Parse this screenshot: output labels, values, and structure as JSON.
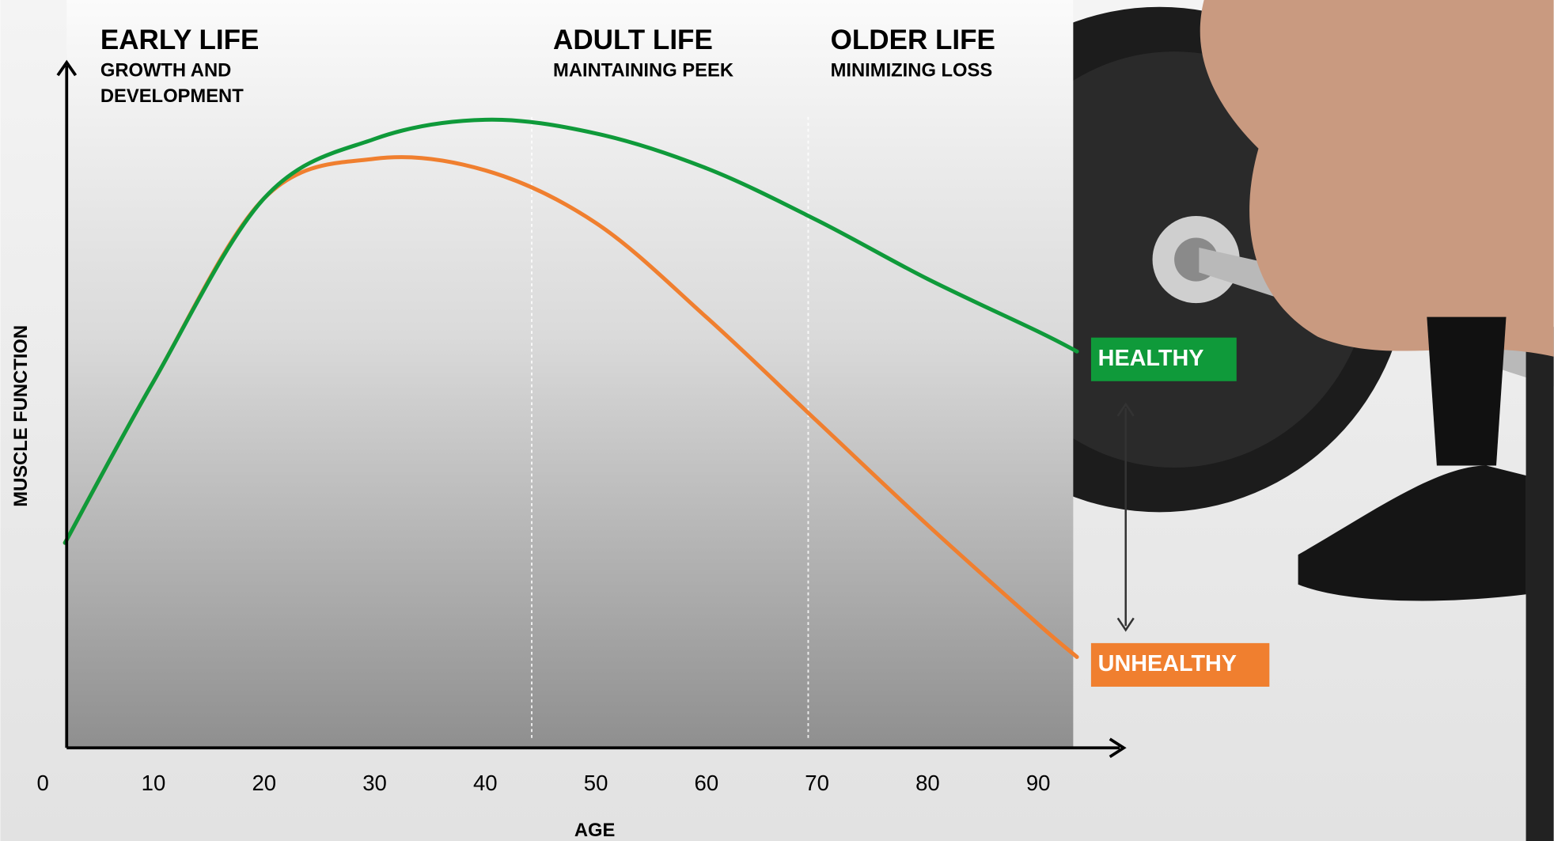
{
  "chart_data": {
    "type": "line",
    "x_label": "AGE",
    "y_label": "MUSCLE FUNCTION",
    "xlim": [
      0,
      98
    ],
    "ylim": [
      0,
      100
    ],
    "xticks": [
      0,
      10,
      20,
      30,
      40,
      50,
      60,
      70,
      80,
      90
    ],
    "x": [
      2,
      10,
      20,
      30,
      40,
      50,
      60,
      70,
      80,
      90,
      93.5
    ],
    "series": [
      {
        "name": "HEALTHY",
        "color": "#0f9a3a",
        "values": [
          30,
          53.6,
          80.4,
          89.1,
          91.9,
          89.9,
          84.8,
          77.2,
          68.6,
          60.9,
          58
        ]
      },
      {
        "name": "UNHEALTHY",
        "color": "#f07f2f",
        "values": [
          30,
          53.6,
          80.4,
          86.2,
          84.5,
          76.8,
          63,
          47.8,
          32.6,
          18.1,
          13.3
        ]
      }
    ],
    "phases": [
      {
        "title": "EARLY LIFE",
        "subtitle": [
          "GROWTH AND",
          "DEVELOPMENT"
        ]
      },
      {
        "title": "ADULT LIFE",
        "subtitle": [
          "MAINTAINING PEEK"
        ]
      },
      {
        "title": "OLDER LIFE",
        "subtitle": [
          "MINIMIZING LOSS"
        ]
      }
    ],
    "dividers": [
      44.2,
      69.2
    ]
  }
}
